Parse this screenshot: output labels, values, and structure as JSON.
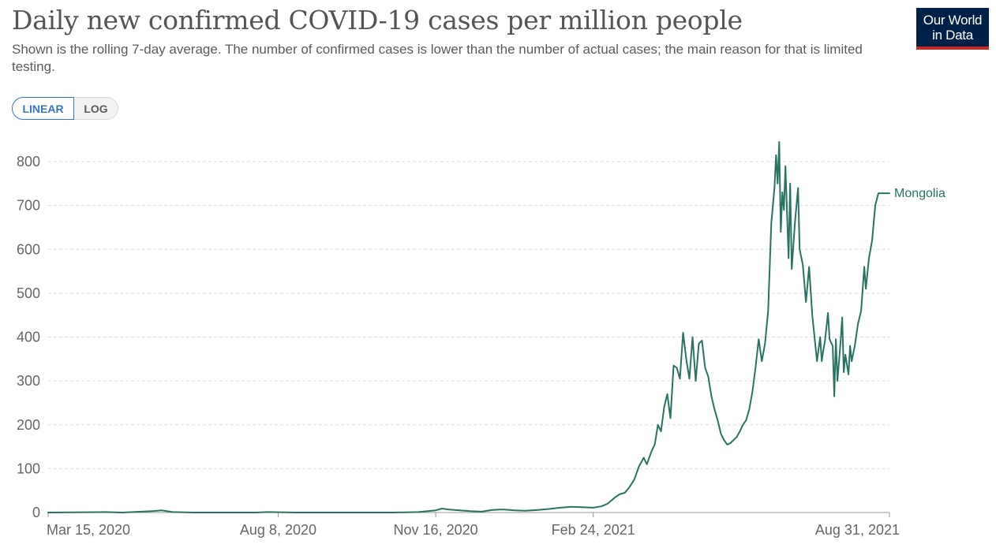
{
  "header": {
    "title": "Daily new confirmed COVID-19 cases per million people",
    "subtitle": "Shown is the rolling 7-day average. The number of confirmed cases is lower than the number of actual cases; the main reason for that is limited testing.",
    "logo_line1": "Our World",
    "logo_line2": "in Data"
  },
  "controls": {
    "linear_label": "LINEAR",
    "log_label": "LOG",
    "active_scale": "linear"
  },
  "colors": {
    "series": "#2a7363",
    "grid": "#dddddd",
    "axis_text": "#666666",
    "accent": "#3874c9",
    "logo_bg": "#002147",
    "logo_stripe": "#ce261e"
  },
  "chart_data": {
    "type": "line",
    "title": "Daily new confirmed COVID-19 cases per million people",
    "xlabel": "",
    "ylabel": "",
    "ylim": [
      0,
      850
    ],
    "yticks": [
      0,
      100,
      200,
      300,
      400,
      500,
      600,
      700,
      800
    ],
    "xlim": [
      "2020-03-15",
      "2021-08-31"
    ],
    "xtick_labels": [
      "Mar 15, 2020",
      "Aug 8, 2020",
      "Nov 16, 2020",
      "Feb 24, 2021",
      "Aug 31, 2021"
    ],
    "xtick_dates": [
      "2020-03-15",
      "2020-08-08",
      "2020-11-16",
      "2021-02-24",
      "2021-08-31"
    ],
    "grid": true,
    "series": [
      {
        "name": "Mongolia",
        "points": [
          [
            "2020-03-15",
            0
          ],
          [
            "2020-04-20",
            1
          ],
          [
            "2020-05-01",
            0
          ],
          [
            "2020-05-20",
            3
          ],
          [
            "2020-05-26",
            5
          ],
          [
            "2020-06-02",
            1
          ],
          [
            "2020-06-15",
            0
          ],
          [
            "2020-07-25",
            0
          ],
          [
            "2020-08-01",
            1
          ],
          [
            "2020-08-20",
            0
          ],
          [
            "2020-10-20",
            0
          ],
          [
            "2020-11-05",
            1
          ],
          [
            "2020-11-16",
            5
          ],
          [
            "2020-11-20",
            9
          ],
          [
            "2020-11-24",
            7
          ],
          [
            "2020-12-01",
            5
          ],
          [
            "2020-12-08",
            3
          ],
          [
            "2020-12-15",
            2
          ],
          [
            "2020-12-22",
            6
          ],
          [
            "2020-12-29",
            7
          ],
          [
            "2021-01-05",
            5
          ],
          [
            "2021-01-12",
            4
          ],
          [
            "2021-01-20",
            6
          ],
          [
            "2021-01-27",
            8
          ],
          [
            "2021-02-03",
            11
          ],
          [
            "2021-02-10",
            13
          ],
          [
            "2021-02-17",
            12
          ],
          [
            "2021-02-24",
            11
          ],
          [
            "2021-03-01",
            14
          ],
          [
            "2021-03-05",
            20
          ],
          [
            "2021-03-10",
            35
          ],
          [
            "2021-03-13",
            42
          ],
          [
            "2021-03-16",
            45
          ],
          [
            "2021-03-19",
            58
          ],
          [
            "2021-03-22",
            75
          ],
          [
            "2021-03-25",
            105
          ],
          [
            "2021-03-28",
            125
          ],
          [
            "2021-03-30",
            110
          ],
          [
            "2021-04-02",
            140
          ],
          [
            "2021-04-04",
            155
          ],
          [
            "2021-04-06",
            200
          ],
          [
            "2021-04-08",
            185
          ],
          [
            "2021-04-10",
            240
          ],
          [
            "2021-04-12",
            270
          ],
          [
            "2021-04-14",
            215
          ],
          [
            "2021-04-16",
            335
          ],
          [
            "2021-04-18",
            330
          ],
          [
            "2021-04-20",
            305
          ],
          [
            "2021-04-22",
            410
          ],
          [
            "2021-04-24",
            350
          ],
          [
            "2021-04-26",
            305
          ],
          [
            "2021-04-28",
            400
          ],
          [
            "2021-04-30",
            300
          ],
          [
            "2021-05-02",
            385
          ],
          [
            "2021-05-04",
            392
          ],
          [
            "2021-05-06",
            330
          ],
          [
            "2021-05-08",
            310
          ],
          [
            "2021-05-10",
            265
          ],
          [
            "2021-05-12",
            235
          ],
          [
            "2021-05-14",
            210
          ],
          [
            "2021-05-16",
            180
          ],
          [
            "2021-05-18",
            165
          ],
          [
            "2021-05-20",
            155
          ],
          [
            "2021-05-22",
            158
          ],
          [
            "2021-05-24",
            165
          ],
          [
            "2021-05-26",
            172
          ],
          [
            "2021-05-28",
            185
          ],
          [
            "2021-05-30",
            200
          ],
          [
            "2021-06-01",
            210
          ],
          [
            "2021-06-03",
            235
          ],
          [
            "2021-06-05",
            275
          ],
          [
            "2021-06-07",
            330
          ],
          [
            "2021-06-09",
            395
          ],
          [
            "2021-06-11",
            345
          ],
          [
            "2021-06-13",
            385
          ],
          [
            "2021-06-15",
            460
          ],
          [
            "2021-06-17",
            660
          ],
          [
            "2021-06-19",
            740
          ],
          [
            "2021-06-20",
            815
          ],
          [
            "2021-06-21",
            750
          ],
          [
            "2021-06-22",
            845
          ],
          [
            "2021-06-23",
            640
          ],
          [
            "2021-06-24",
            730
          ],
          [
            "2021-06-25",
            690
          ],
          [
            "2021-06-26",
            790
          ],
          [
            "2021-06-28",
            580
          ],
          [
            "2021-06-29",
            750
          ],
          [
            "2021-06-30",
            555
          ],
          [
            "2021-07-02",
            660
          ],
          [
            "2021-07-04",
            740
          ],
          [
            "2021-07-05",
            600
          ],
          [
            "2021-07-07",
            565
          ],
          [
            "2021-07-09",
            480
          ],
          [
            "2021-07-11",
            560
          ],
          [
            "2021-07-13",
            450
          ],
          [
            "2021-07-15",
            380
          ],
          [
            "2021-07-16",
            345
          ],
          [
            "2021-07-18",
            400
          ],
          [
            "2021-07-19",
            345
          ],
          [
            "2021-07-20",
            370
          ],
          [
            "2021-07-21",
            390
          ],
          [
            "2021-07-23",
            455
          ],
          [
            "2021-07-24",
            395
          ],
          [
            "2021-07-26",
            380
          ],
          [
            "2021-07-27",
            265
          ],
          [
            "2021-07-28",
            395
          ],
          [
            "2021-07-29",
            300
          ],
          [
            "2021-07-31",
            390
          ],
          [
            "2021-08-01",
            445
          ],
          [
            "2021-08-02",
            320
          ],
          [
            "2021-08-03",
            360
          ],
          [
            "2021-08-05",
            315
          ],
          [
            "2021-08-06",
            380
          ],
          [
            "2021-08-07",
            345
          ],
          [
            "2021-08-09",
            380
          ],
          [
            "2021-08-11",
            430
          ],
          [
            "2021-08-13",
            460
          ],
          [
            "2021-08-15",
            560
          ],
          [
            "2021-08-16",
            510
          ],
          [
            "2021-08-18",
            580
          ],
          [
            "2021-08-20",
            620
          ],
          [
            "2021-08-22",
            700
          ],
          [
            "2021-08-24",
            728
          ],
          [
            "2021-08-31",
            728
          ]
        ]
      }
    ]
  }
}
